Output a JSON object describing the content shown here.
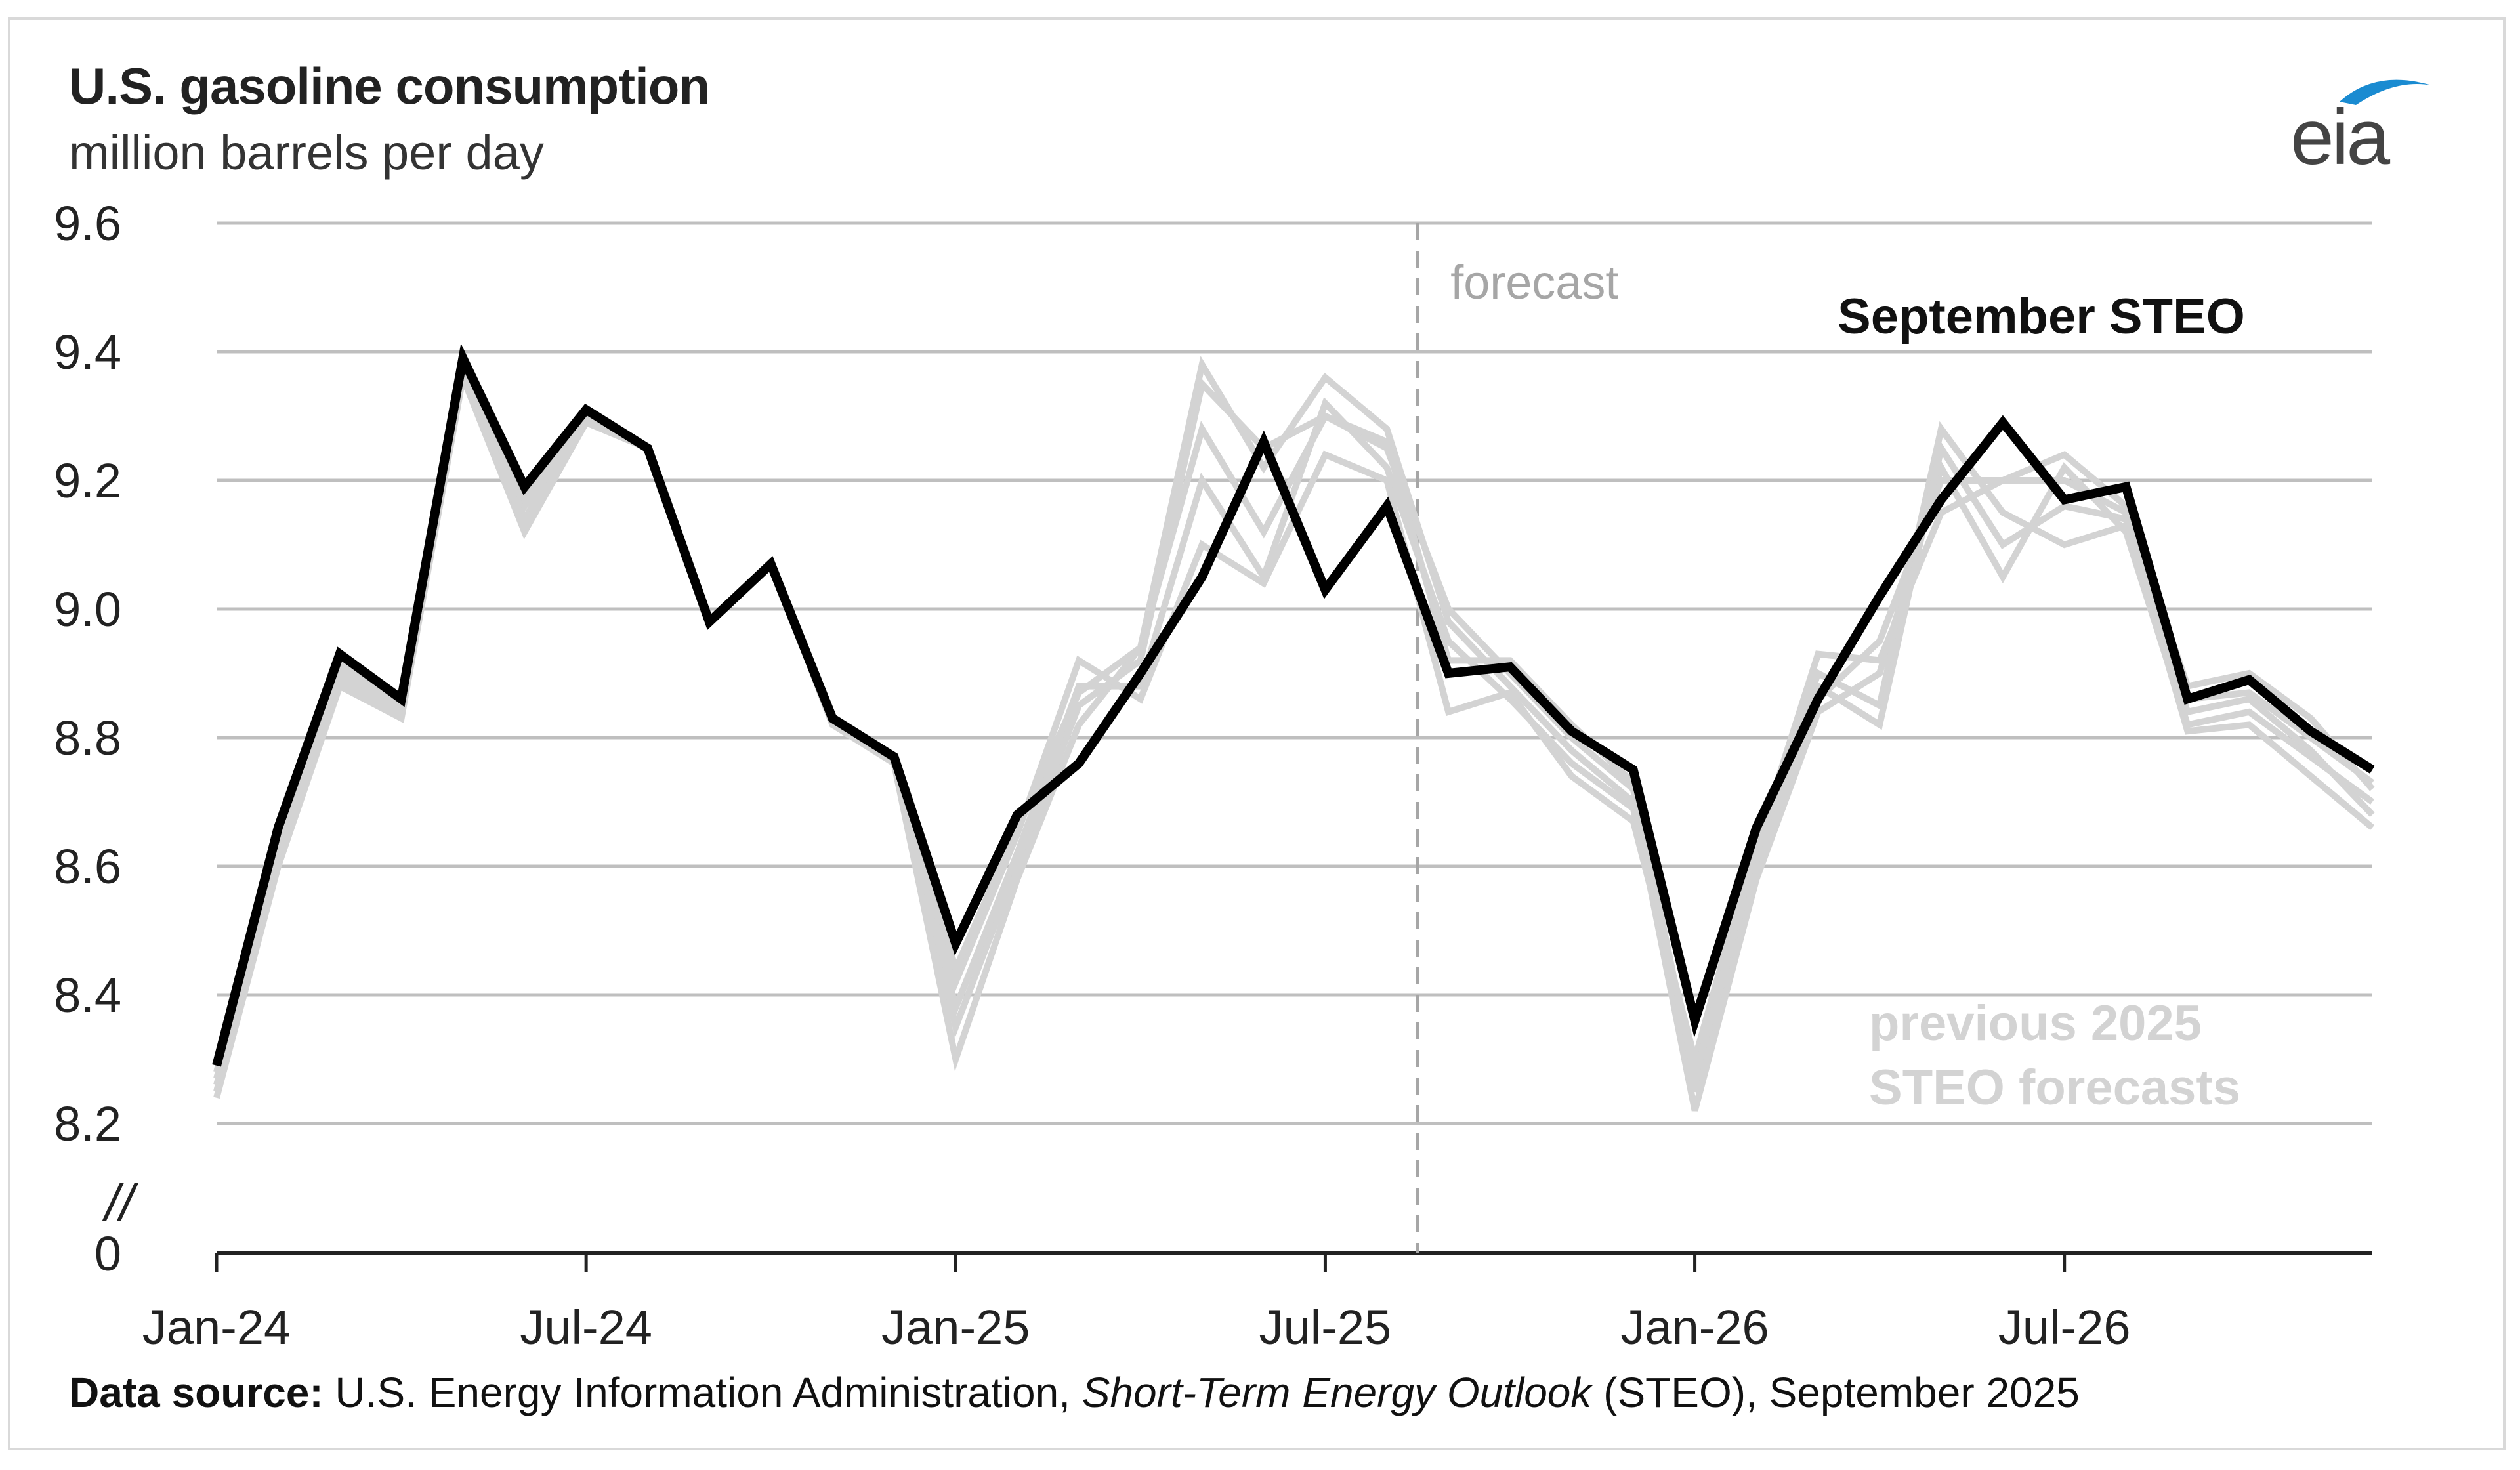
{
  "header": {
    "title": "U.S. gasoline consumption",
    "subtitle": "million barrels per day"
  },
  "logo": {
    "text": "eia",
    "color": "#1a8bd1",
    "icon": "eia-logo"
  },
  "source": {
    "label": "Data source:",
    "pre": "U.S. Energy Information Administration,",
    "italic": "Short-Term Energy Outlook",
    "post": "(STEO), September 2025"
  },
  "chart_data": {
    "type": "line",
    "title": "U.S. gasoline consumption",
    "ylabel": "million barrels per day",
    "ylim": [
      8.2,
      9.6
    ],
    "yticks": [
      9.6,
      9.4,
      9.2,
      9.0,
      8.8,
      8.6,
      8.4,
      8.2
    ],
    "ytick_labels": [
      "9.6",
      "9.4",
      "9.2",
      "9.0",
      "8.8",
      "8.6",
      "8.4",
      "8.2"
    ],
    "y_zero_label": "0",
    "axis_break": "//",
    "x_start": "Jan-24",
    "x_end": "Dec-26",
    "xtick_labels": [
      "Jan-24",
      "Jul-24",
      "Jan-25",
      "Jul-25",
      "Jan-26",
      "Jul-26"
    ],
    "forecast_start": "Sep-25",
    "forecast_label": "forecast",
    "colors": {
      "current": "#000000",
      "previous": "#d3d3d3",
      "grid": "#bfbfbf"
    },
    "annotations": {
      "current": "September STEO",
      "previous": [
        "previous 2025",
        "STEO forecasts"
      ]
    },
    "x": [
      "Jan-24",
      "Feb-24",
      "Mar-24",
      "Apr-24",
      "May-24",
      "Jun-24",
      "Jul-24",
      "Aug-24",
      "Sep-24",
      "Oct-24",
      "Nov-24",
      "Dec-24",
      "Jan-25",
      "Feb-25",
      "Mar-25",
      "Apr-25",
      "May-25",
      "Jun-25",
      "Jul-25",
      "Aug-25",
      "Sep-25",
      "Oct-25",
      "Nov-25",
      "Dec-25",
      "Jan-26",
      "Feb-26",
      "Mar-26",
      "Apr-26",
      "May-26",
      "Jun-26",
      "Jul-26",
      "Aug-26",
      "Sep-26",
      "Oct-26",
      "Nov-26",
      "Dec-26"
    ],
    "series": [
      {
        "name": "September STEO",
        "values": [
          8.29,
          8.66,
          8.93,
          8.86,
          9.39,
          9.19,
          9.31,
          9.25,
          8.98,
          9.07,
          8.83,
          8.77,
          8.48,
          8.68,
          8.76,
          8.9,
          9.05,
          9.26,
          9.03,
          9.16,
          8.9,
          8.91,
          8.81,
          8.75,
          8.36,
          8.66,
          8.86,
          9.02,
          9.17,
          9.29,
          9.17,
          9.19,
          8.86,
          8.89,
          8.81,
          8.75
        ]
      },
      {
        "values": [
          8.25,
          8.62,
          8.9,
          8.84,
          9.37,
          9.14,
          9.3,
          9.25,
          8.98,
          9.07,
          8.83,
          8.77,
          8.35,
          8.6,
          8.85,
          8.92,
          9.35,
          9.25,
          9.3,
          9.25,
          9.0,
          8.9,
          8.8,
          8.72,
          8.25,
          8.6,
          8.86,
          8.95,
          9.2,
          9.2,
          9.2,
          9.15,
          8.86,
          8.87,
          8.8,
          8.73
        ]
      },
      {
        "values": [
          8.24,
          8.6,
          8.88,
          8.83,
          9.36,
          9.12,
          9.29,
          9.25,
          8.98,
          9.07,
          8.82,
          8.76,
          8.3,
          8.58,
          8.82,
          8.94,
          9.38,
          9.22,
          9.36,
          9.28,
          8.98,
          8.88,
          8.78,
          8.7,
          8.22,
          8.58,
          8.84,
          8.9,
          9.22,
          9.05,
          9.22,
          9.12,
          8.82,
          8.84,
          8.77,
          8.7
        ]
      },
      {
        "values": [
          8.27,
          8.63,
          8.91,
          8.85,
          9.38,
          9.16,
          9.3,
          9.25,
          8.98,
          9.07,
          8.83,
          8.77,
          8.38,
          8.62,
          8.88,
          8.88,
          9.2,
          9.05,
          9.32,
          9.22,
          8.95,
          8.86,
          8.76,
          8.69,
          8.28,
          8.62,
          8.9,
          8.85,
          9.28,
          9.15,
          9.1,
          9.13,
          8.84,
          8.86,
          8.78,
          8.68
        ]
      },
      {
        "values": [
          8.26,
          8.61,
          8.89,
          8.84,
          9.37,
          9.13,
          9.29,
          9.25,
          8.98,
          9.07,
          8.82,
          8.77,
          8.42,
          8.65,
          8.92,
          8.86,
          9.1,
          9.04,
          9.24,
          9.2,
          8.84,
          8.87,
          8.74,
          8.67,
          8.3,
          8.64,
          8.88,
          8.82,
          9.25,
          9.1,
          9.16,
          9.14,
          8.81,
          8.82,
          8.74,
          8.66
        ]
      },
      {
        "values": [
          8.28,
          8.64,
          8.92,
          8.85,
          9.38,
          9.17,
          9.3,
          9.25,
          8.98,
          9.07,
          8.83,
          8.77,
          8.44,
          8.66,
          8.87,
          8.94,
          9.28,
          9.12,
          9.3,
          9.26,
          8.92,
          8.92,
          8.82,
          8.73,
          8.27,
          8.63,
          8.93,
          8.92,
          9.15,
          9.2,
          9.24,
          9.16,
          8.88,
          8.9,
          8.83,
          8.72
        ]
      }
    ]
  }
}
